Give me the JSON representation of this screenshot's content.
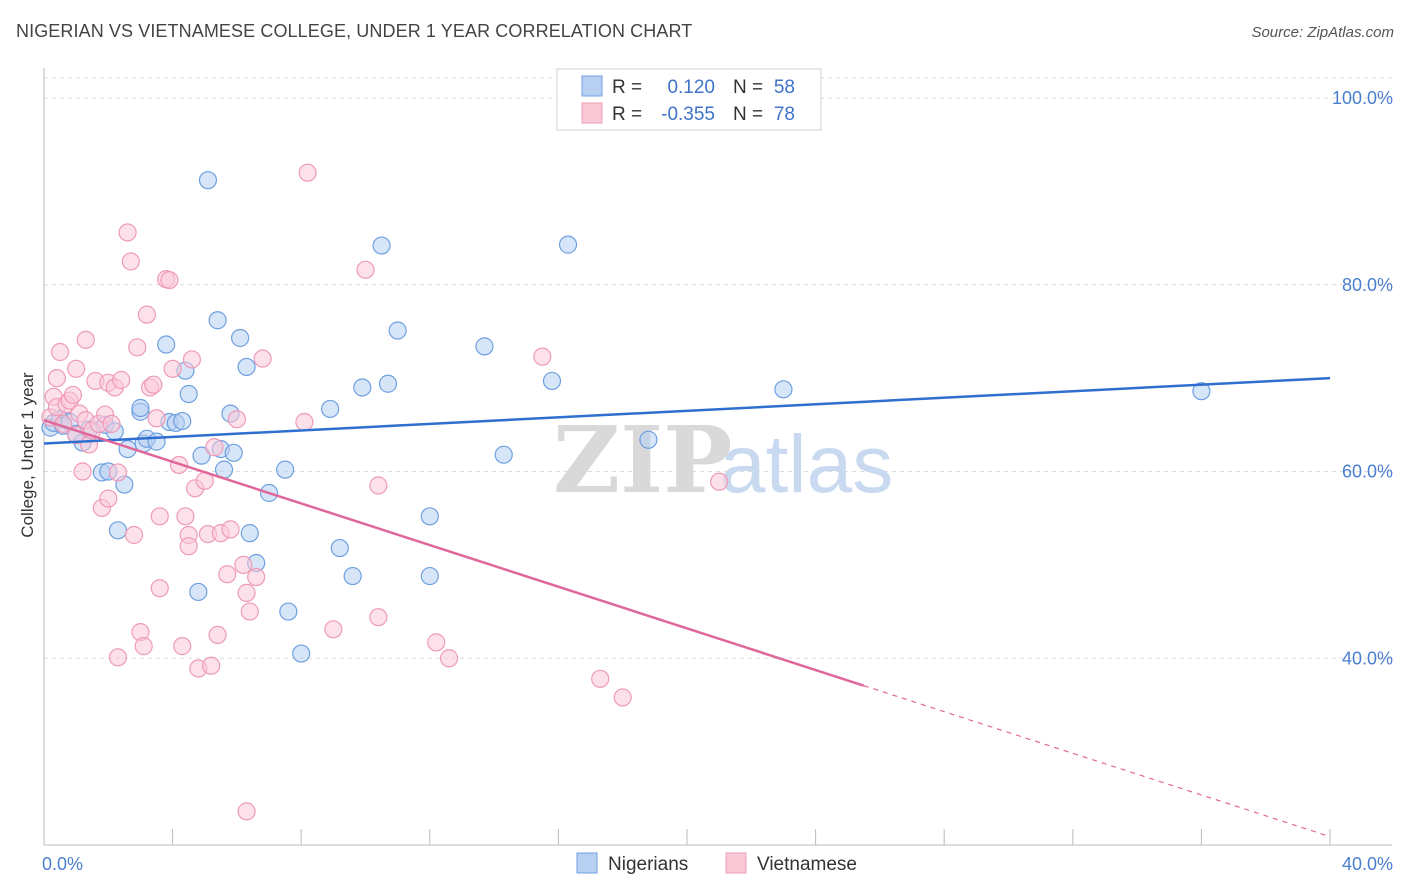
{
  "title": "NIGERIAN VS VIETNAMESE COLLEGE, UNDER 1 YEAR CORRELATION CHART",
  "source": "Source: ZipAtlas.com",
  "watermark": {
    "zip": "ZIP",
    "atlas": "atlas"
  },
  "chart_data": {
    "type": "scatter",
    "ylabel": "College, Under 1 year",
    "xlim": [
      0,
      40
    ],
    "ylim": [
      20,
      103
    ],
    "y_ticks": [
      {
        "value": 100,
        "label": "100.0%"
      },
      {
        "value": 80,
        "label": "80.0%"
      },
      {
        "value": 60,
        "label": "60.0%"
      },
      {
        "value": 40,
        "label": "40.0%"
      }
    ],
    "x_tick_labels": [
      {
        "value": 0,
        "label": "0.0%"
      },
      {
        "value": 40,
        "label": "40.0%"
      }
    ],
    "x_minor_ticks": [
      0,
      4,
      8,
      12,
      16,
      20,
      24,
      28,
      32,
      36,
      40
    ],
    "grid": true,
    "legend": {
      "entries": [
        {
          "r_label": "R =",
          "r_value": "0.120",
          "n_label": "N =",
          "n_value": "58"
        },
        {
          "r_label": "R =",
          "r_value": "-0.355",
          "n_label": "N =",
          "n_value": "78"
        }
      ]
    },
    "series": [
      {
        "name": "Nigerians",
        "color": "#6fa0e0",
        "fill": "#b7d0f2",
        "line_color": "#2f6fcf",
        "trend": {
          "x0": 0,
          "y0": 63.0,
          "x1": 40,
          "y1": 70.0,
          "solid_to": 40
        },
        "points": [
          [
            0.2,
            64.7
          ],
          [
            0.3,
            65.2
          ],
          [
            0.5,
            65.6
          ],
          [
            0.6,
            64.9
          ],
          [
            0.8,
            65.3
          ],
          [
            1.0,
            64.0
          ],
          [
            1.2,
            63.1
          ],
          [
            1.4,
            64.5
          ],
          [
            1.8,
            59.9
          ],
          [
            1.9,
            65.0
          ],
          [
            2.0,
            60.0
          ],
          [
            2.2,
            64.3
          ],
          [
            2.3,
            53.7
          ],
          [
            2.5,
            58.6
          ],
          [
            2.6,
            62.4
          ],
          [
            3.0,
            66.4
          ],
          [
            3.0,
            66.8
          ],
          [
            3.1,
            63.0
          ],
          [
            3.2,
            63.5
          ],
          [
            3.5,
            63.2
          ],
          [
            3.8,
            73.6
          ],
          [
            3.9,
            65.3
          ],
          [
            4.1,
            65.2
          ],
          [
            4.3,
            65.4
          ],
          [
            4.4,
            70.8
          ],
          [
            4.5,
            68.3
          ],
          [
            4.8,
            47.1
          ],
          [
            4.9,
            61.7
          ],
          [
            5.1,
            91.2
          ],
          [
            5.4,
            76.2
          ],
          [
            5.5,
            62.4
          ],
          [
            5.6,
            60.2
          ],
          [
            5.8,
            66.2
          ],
          [
            5.9,
            62.0
          ],
          [
            6.1,
            74.3
          ],
          [
            6.3,
            71.2
          ],
          [
            6.4,
            53.4
          ],
          [
            6.6,
            50.2
          ],
          [
            7.0,
            57.7
          ],
          [
            7.5,
            60.2
          ],
          [
            7.6,
            45.0
          ],
          [
            8.0,
            40.5
          ],
          [
            8.9,
            66.7
          ],
          [
            9.2,
            51.8
          ],
          [
            9.6,
            48.8
          ],
          [
            9.9,
            69.0
          ],
          [
            10.5,
            84.2
          ],
          [
            10.7,
            69.4
          ],
          [
            11.0,
            75.1
          ],
          [
            12.0,
            48.8
          ],
          [
            12.0,
            55.2
          ],
          [
            13.7,
            73.4
          ],
          [
            14.3,
            61.8
          ],
          [
            15.8,
            69.7
          ],
          [
            16.3,
            84.3
          ],
          [
            18.8,
            63.4
          ],
          [
            23.0,
            68.8
          ],
          [
            36.0,
            68.6
          ]
        ]
      },
      {
        "name": "Vietnamese",
        "color": "#ef9ab8",
        "fill": "#f9c9d8",
        "line_color": "#e0679a",
        "trend": {
          "x0": 0,
          "y0": 65.5,
          "x1": 40,
          "y1": 20.9,
          "solid_to": 25.5
        },
        "points": [
          [
            0.2,
            65.8
          ],
          [
            0.3,
            68.0
          ],
          [
            0.4,
            66.9
          ],
          [
            0.4,
            70.0
          ],
          [
            0.5,
            72.8
          ],
          [
            0.6,
            65.1
          ],
          [
            0.7,
            67.2
          ],
          [
            0.8,
            67.6
          ],
          [
            0.9,
            68.2
          ],
          [
            1.0,
            71.0
          ],
          [
            1.0,
            63.9
          ],
          [
            1.1,
            66.2
          ],
          [
            1.2,
            60.0
          ],
          [
            1.3,
            65.5
          ],
          [
            1.3,
            74.1
          ],
          [
            1.4,
            62.9
          ],
          [
            1.5,
            64.4
          ],
          [
            1.6,
            69.7
          ],
          [
            1.7,
            65.1
          ],
          [
            1.8,
            56.1
          ],
          [
            1.9,
            66.1
          ],
          [
            2.0,
            69.5
          ],
          [
            2.0,
            57.1
          ],
          [
            2.1,
            65.1
          ],
          [
            2.2,
            69.0
          ],
          [
            2.3,
            59.9
          ],
          [
            2.3,
            40.1
          ],
          [
            2.4,
            69.8
          ],
          [
            2.6,
            85.6
          ],
          [
            2.7,
            82.5
          ],
          [
            2.8,
            53.2
          ],
          [
            2.9,
            73.3
          ],
          [
            3.0,
            42.8
          ],
          [
            3.1,
            41.3
          ],
          [
            3.2,
            76.8
          ],
          [
            3.3,
            69.0
          ],
          [
            3.4,
            69.3
          ],
          [
            3.5,
            65.7
          ],
          [
            3.6,
            47.5
          ],
          [
            3.6,
            55.2
          ],
          [
            3.8,
            80.6
          ],
          [
            3.9,
            80.5
          ],
          [
            4.0,
            71.0
          ],
          [
            4.2,
            60.7
          ],
          [
            4.3,
            41.3
          ],
          [
            4.4,
            55.2
          ],
          [
            4.5,
            53.2
          ],
          [
            4.5,
            52.0
          ],
          [
            4.6,
            72.0
          ],
          [
            4.7,
            58.2
          ],
          [
            4.8,
            38.9
          ],
          [
            5.0,
            59.0
          ],
          [
            5.1,
            53.3
          ],
          [
            5.2,
            39.2
          ],
          [
            5.3,
            62.6
          ],
          [
            5.4,
            42.5
          ],
          [
            5.5,
            53.4
          ],
          [
            5.7,
            49.0
          ],
          [
            5.8,
            53.8
          ],
          [
            6.0,
            65.6
          ],
          [
            6.2,
            50.0
          ],
          [
            6.3,
            47.0
          ],
          [
            6.4,
            45.0
          ],
          [
            6.6,
            48.7
          ],
          [
            6.8,
            72.1
          ],
          [
            8.1,
            65.3
          ],
          [
            8.2,
            92.0
          ],
          [
            9.0,
            43.1
          ],
          [
            10.0,
            81.6
          ],
          [
            10.4,
            58.5
          ],
          [
            10.4,
            44.4
          ],
          [
            12.2,
            41.7
          ],
          [
            12.6,
            40.0
          ],
          [
            15.5,
            72.3
          ],
          [
            17.3,
            37.8
          ],
          [
            18.0,
            35.8
          ],
          [
            21.0,
            58.9
          ],
          [
            6.3,
            23.6
          ]
        ]
      }
    ]
  },
  "bottom_legend": [
    {
      "label": "Nigerians"
    },
    {
      "label": "Vietnamese"
    }
  ]
}
